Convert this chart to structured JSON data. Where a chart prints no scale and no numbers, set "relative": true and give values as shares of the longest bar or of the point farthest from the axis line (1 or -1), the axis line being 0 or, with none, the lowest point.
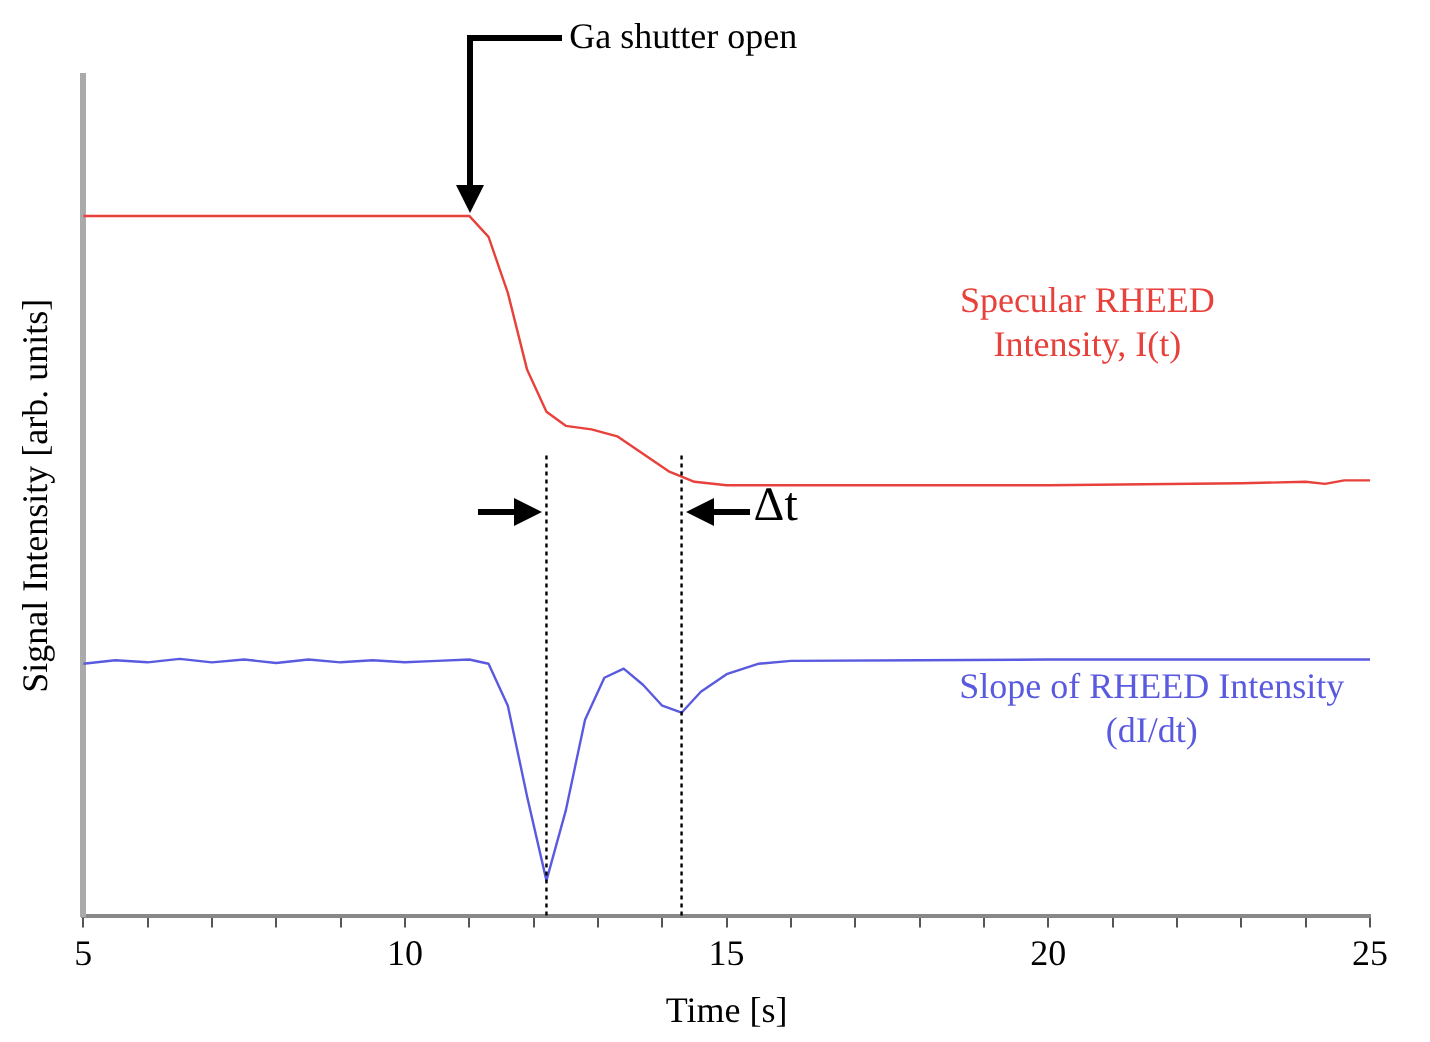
{
  "chart_data": {
    "type": "line",
    "relative": true,
    "xlabel": "Time [s]",
    "ylabel": "Signal Intensity [arb. units]",
    "xlim": [
      5,
      25
    ],
    "xticks": [
      5,
      {
        "value": 6,
        "label": null
      },
      {
        "value": 7,
        "label": null
      },
      {
        "value": 8,
        "label": null
      },
      {
        "value": 9,
        "label": null
      },
      10,
      {
        "value": 11,
        "label": null
      },
      {
        "value": 12,
        "label": null
      },
      {
        "value": 13,
        "label": null
      },
      {
        "value": 14,
        "label": null
      },
      15,
      {
        "value": 16,
        "label": null
      },
      {
        "value": 17,
        "label": null
      },
      {
        "value": 18,
        "label": null
      },
      {
        "value": 19,
        "label": null
      },
      20,
      {
        "value": 21,
        "label": null
      },
      {
        "value": 22,
        "label": null
      },
      {
        "value": 23,
        "label": null
      },
      {
        "value": 24,
        "label": null
      },
      25
    ],
    "grid": false,
    "legend": false,
    "marker": "none",
    "line_style": "solid",
    "tick_labels": "x",
    "series": [
      {
        "name": "Specular RHEED\nIntensity, I(t)",
        "color": "#e8403a",
        "x": [
          5,
          6,
          7,
          8,
          9,
          10,
          11,
          11.3,
          11.6,
          11.9,
          12.2,
          12.5,
          12.9,
          13.3,
          13.7,
          14.1,
          14.5,
          15,
          17,
          20,
          23,
          24,
          24.3,
          24.6,
          25
        ],
        "values": [
          1,
          1,
          1,
          1,
          1,
          1,
          1,
          0.97,
          0.89,
          0.78,
          0.72,
          0.7,
          0.695,
          0.685,
          0.66,
          0.635,
          0.62,
          0.615,
          0.615,
          0.615,
          0.618,
          0.62,
          0.617,
          0.622,
          0.622
        ]
      },
      {
        "name": "Slope of RHEED Intensity\n(dI/dt)",
        "color": "#5a5ae0",
        "x": [
          5,
          5.5,
          6,
          6.5,
          7,
          7.5,
          8,
          8.5,
          9,
          9.5,
          10,
          10.5,
          11,
          11.3,
          11.6,
          11.9,
          12.2,
          12.5,
          12.8,
          13.1,
          13.4,
          13.7,
          14,
          14.3,
          14.6,
          15,
          15.5,
          16,
          18,
          20,
          25
        ],
        "values": [
          0.36,
          0.365,
          0.362,
          0.367,
          0.362,
          0.366,
          0.361,
          0.366,
          0.362,
          0.365,
          0.362,
          0.364,
          0.366,
          0.36,
          0.3,
          0.17,
          0.05,
          0.15,
          0.28,
          0.34,
          0.353,
          0.33,
          0.3,
          0.29,
          0.32,
          0.345,
          0.36,
          0.364,
          0.365,
          0.366,
          0.366
        ]
      }
    ],
    "ref_lines": [
      {
        "axis": "x",
        "value": 12.2,
        "color": "#000000",
        "line_style": "dotted"
      },
      {
        "axis": "x",
        "value": 14.3,
        "color": "#000000",
        "line_style": "dotted"
      }
    ],
    "annotations": [
      "Ga shutter open",
      "Δt"
    ]
  }
}
